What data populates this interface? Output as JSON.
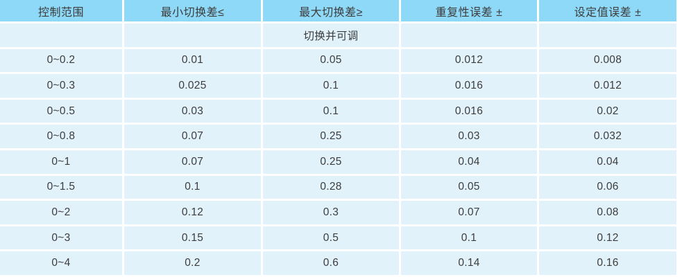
{
  "table": {
    "title_semantic": "pressure-switch-specification-table",
    "columns": [
      "控制范围",
      "最小切换差≤",
      "最大切换差≥",
      "重复性误差 ±",
      "设定值误差 ±"
    ],
    "subheader": [
      "",
      "",
      "切换并可调",
      "",
      ""
    ],
    "rows": [
      [
        "0~0.2",
        "0.01",
        "0.05",
        "0.012",
        "0.008"
      ],
      [
        "0~0.3",
        "0.025",
        "0.1",
        "0.016",
        "0.012"
      ],
      [
        "0~0.5",
        "0.03",
        "0.1",
        "0.016",
        "0.02"
      ],
      [
        "0~0.8",
        "0.07",
        "0.25",
        "0.03",
        "0.032"
      ],
      [
        "0~1",
        "0.07",
        "0.25",
        "0.04",
        "0.04"
      ],
      [
        "0~1.5",
        "0.1",
        "0.28",
        "0.05",
        "0.06"
      ],
      [
        "0~2",
        "0.12",
        "0.3",
        "0.07",
        "0.08"
      ],
      [
        "0~3",
        "0.15",
        "0.5",
        "0.1",
        "0.12"
      ],
      [
        "0~4",
        "0.2",
        "0.6",
        "0.14",
        "0.16"
      ]
    ],
    "colors": {
      "header_bg": "#8ed9f7",
      "row_bg": "#e1f2fa",
      "grid_line": "#ffffff",
      "text": "#3c3c3c"
    }
  }
}
